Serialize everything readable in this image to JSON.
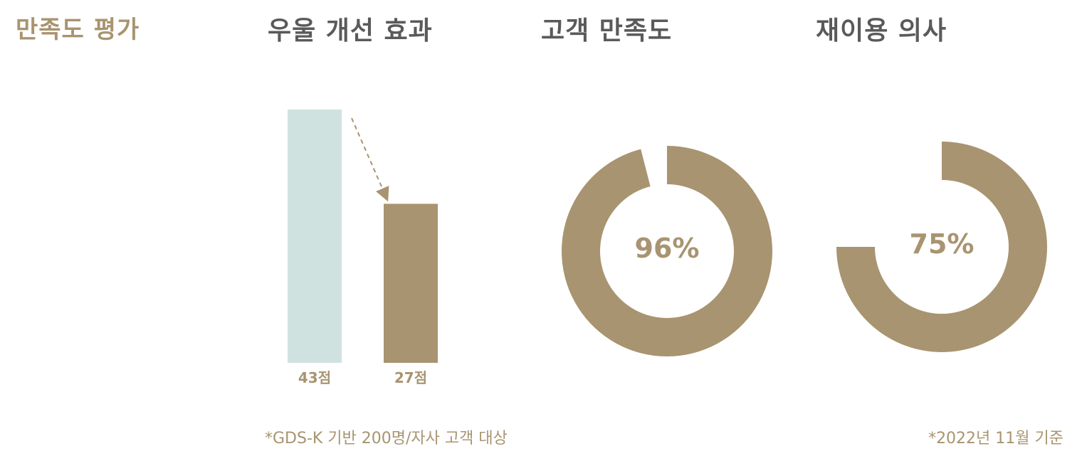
{
  "page_title": "만족도 평가",
  "sections": {
    "improvement_title": "우울 개선 효과",
    "satisfaction_title": "고객 만족도",
    "reuse_title": "재이용 의사"
  },
  "colors": {
    "accent": "#a89470",
    "before_bar": "#d0e2e0",
    "title_gray": "#5a5a5a"
  },
  "chart_data": [
    {
      "type": "bar",
      "categories": [
        "43점",
        "27점"
      ],
      "values": [
        43,
        27
      ],
      "title": "우울 개선 효과",
      "colors": [
        "#d0e2e0",
        "#a89470"
      ],
      "annotation": "dashed arrow from first bar to second bar"
    },
    {
      "type": "pie",
      "style": "donut",
      "title": "고객 만족도",
      "value": 96,
      "label": "96%",
      "color": "#a89470"
    },
    {
      "type": "pie",
      "style": "donut",
      "title": "재이용 의사",
      "value": 75,
      "label": "75%",
      "color": "#a89470"
    }
  ],
  "footnotes": {
    "left": "*GDS-K 기반 200명/자사 고객 대상",
    "right": "*2022년 11월 기준"
  }
}
